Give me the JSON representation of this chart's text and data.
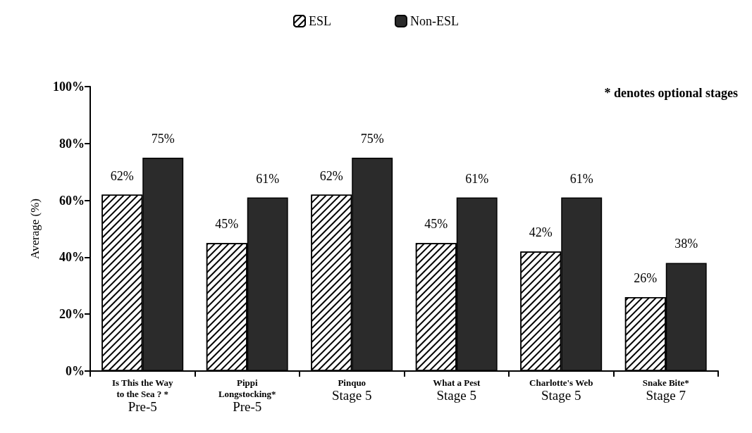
{
  "chart_data": {
    "type": "bar",
    "ylabel": "Average (%)",
    "categories": [
      "Is This the Way\nto the Sea ? *\nPre-5",
      "Pippi\nLongstocking*\nPre-5",
      "Pinquo\nStage 5",
      "What a Pest\nStage 5",
      "Charlotte's Web\nStage 5",
      "Snake Bite*\nStage 7"
    ],
    "series": [
      {
        "name": "ESL",
        "color": "#ffffff",
        "values": [
          62,
          45,
          62,
          45,
          42,
          26
        ],
        "value_labels": [
          "62%",
          "45%",
          "62%",
          "45%",
          "42%",
          "26%"
        ]
      },
      {
        "name": "Non-ESL",
        "color": "#2b2b2b",
        "values": [
          75,
          61,
          75,
          61,
          61,
          38
        ],
        "value_labels": [
          "75%",
          "61%",
          "75%",
          "61%",
          "61%",
          "38%"
        ]
      }
    ],
    "ylim": [
      0,
      100
    ],
    "yticks": [
      {
        "value": 0,
        "label": "0%"
      },
      {
        "value": 20,
        "label": "20%"
      },
      {
        "value": 40,
        "label": "40%"
      },
      {
        "value": 60,
        "label": "60%"
      },
      {
        "value": 80,
        "label": "80%"
      },
      {
        "value": 100,
        "label": "100%"
      }
    ],
    "grid": false,
    "legend": "top",
    "annotations": [
      "* denotes optional stages"
    ]
  }
}
